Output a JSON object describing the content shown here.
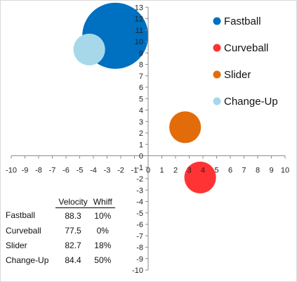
{
  "chart_data": {
    "type": "scatter",
    "subtype": "bubble",
    "title": "",
    "xlabel": "",
    "ylabel": "",
    "xlim": [
      -10,
      10
    ],
    "ylim": [
      -10,
      13
    ],
    "x_ticks": [
      -10,
      -9,
      -8,
      -7,
      -6,
      -5,
      -4,
      -3,
      -2,
      -1,
      0,
      1,
      2,
      3,
      4,
      5,
      6,
      7,
      8,
      9,
      10
    ],
    "y_ticks": [
      -10,
      -9,
      -8,
      -7,
      -6,
      -5,
      -4,
      -3,
      -2,
      -1,
      0,
      1,
      2,
      3,
      4,
      5,
      6,
      7,
      8,
      9,
      10,
      11,
      12,
      13
    ],
    "grid": false,
    "legend_position": "right",
    "series": [
      {
        "name": "Fastball",
        "x": -2.4,
        "y": 10.5,
        "size": 100,
        "color": "#0070c0"
      },
      {
        "name": "Curveball",
        "x": 3.8,
        "y": -1.9,
        "size": 23,
        "color": "#ff3333"
      },
      {
        "name": "Slider",
        "x": 2.7,
        "y": 2.5,
        "size": 23,
        "color": "#e36c0a"
      },
      {
        "name": "Change-Up",
        "x": -4.3,
        "y": 9.3,
        "size": 23,
        "color": "#a6d8ea"
      }
    ]
  },
  "table": {
    "headers": [
      "Velocity",
      "Whiff"
    ],
    "rows": [
      {
        "name": "Fastball",
        "velocity": "88.3",
        "whiff": "10%"
      },
      {
        "name": "Curveball",
        "velocity": "77.5",
        "whiff": "0%"
      },
      {
        "name": "Slider",
        "velocity": "82.7",
        "whiff": "18%"
      },
      {
        "name": "Change-Up",
        "velocity": "84.4",
        "whiff": "50%"
      }
    ]
  }
}
